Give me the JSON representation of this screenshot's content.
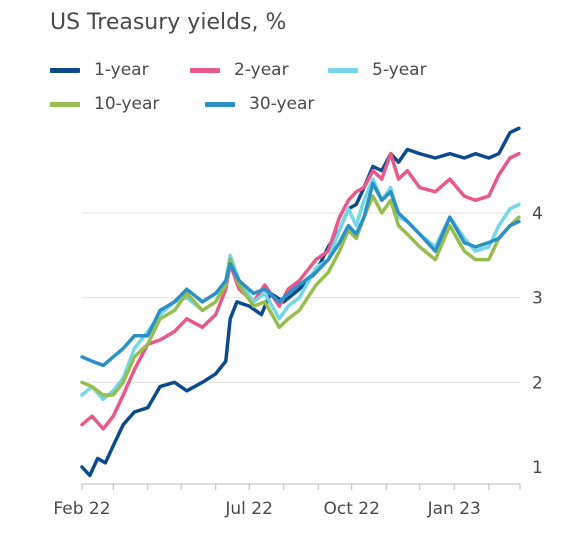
{
  "chart_data": {
    "type": "line",
    "title": "US Treasury yields, %",
    "xlabel": "",
    "ylabel": "",
    "x_ticks": [
      "Feb 22",
      "Jul 22",
      "Oct 22",
      "Jan 23"
    ],
    "y_ticks": [
      "1",
      "2",
      "3",
      "4"
    ],
    "ylim": [
      0.85,
      5.0
    ],
    "xlim": [
      "2022-02-01",
      "2023-03-01"
    ],
    "y_axis_side": "right",
    "grid": "horizontal",
    "legend_position": "top",
    "series": [
      {
        "name": "1-year",
        "color": "#0d4a8c",
        "points": [
          [
            "2022-02-01",
            1.0
          ],
          [
            "2022-02-08",
            0.9
          ],
          [
            "2022-02-15",
            1.1
          ],
          [
            "2022-02-22",
            1.05
          ],
          [
            "2022-03-01",
            1.25
          ],
          [
            "2022-03-10",
            1.5
          ],
          [
            "2022-03-20",
            1.65
          ],
          [
            "2022-04-01",
            1.7
          ],
          [
            "2022-04-12",
            1.95
          ],
          [
            "2022-04-25",
            2.0
          ],
          [
            "2022-05-06",
            1.9
          ],
          [
            "2022-05-20",
            2.0
          ],
          [
            "2022-06-01",
            2.1
          ],
          [
            "2022-06-10",
            2.25
          ],
          [
            "2022-06-14",
            2.75
          ],
          [
            "2022-06-20",
            2.95
          ],
          [
            "2022-07-01",
            2.9
          ],
          [
            "2022-07-12",
            2.8
          ],
          [
            "2022-07-20",
            3.05
          ],
          [
            "2022-08-01",
            2.95
          ],
          [
            "2022-08-15",
            3.1
          ],
          [
            "2022-08-30",
            3.3
          ],
          [
            "2022-09-10",
            3.6
          ],
          [
            "2022-09-20",
            3.8
          ],
          [
            "2022-09-28",
            4.05
          ],
          [
            "2022-10-05",
            4.1
          ],
          [
            "2022-10-12",
            4.3
          ],
          [
            "2022-10-20",
            4.55
          ],
          [
            "2022-10-28",
            4.5
          ],
          [
            "2022-11-05",
            4.7
          ],
          [
            "2022-11-12",
            4.6
          ],
          [
            "2022-11-20",
            4.75
          ],
          [
            "2022-12-01",
            4.7
          ],
          [
            "2022-12-15",
            4.65
          ],
          [
            "2022-12-28",
            4.7
          ],
          [
            "2023-01-10",
            4.65
          ],
          [
            "2023-01-20",
            4.7
          ],
          [
            "2023-02-01",
            4.65
          ],
          [
            "2023-02-10",
            4.7
          ],
          [
            "2023-02-20",
            4.95
          ],
          [
            "2023-02-28",
            5.0
          ]
        ]
      },
      {
        "name": "2-year",
        "color": "#e8588a",
        "points": [
          [
            "2022-02-01",
            1.5
          ],
          [
            "2022-02-10",
            1.6
          ],
          [
            "2022-02-20",
            1.45
          ],
          [
            "2022-03-01",
            1.6
          ],
          [
            "2022-03-10",
            1.85
          ],
          [
            "2022-03-20",
            2.15
          ],
          [
            "2022-04-01",
            2.45
          ],
          [
            "2022-04-12",
            2.5
          ],
          [
            "2022-04-25",
            2.6
          ],
          [
            "2022-05-06",
            2.75
          ],
          [
            "2022-05-20",
            2.65
          ],
          [
            "2022-06-01",
            2.8
          ],
          [
            "2022-06-10",
            3.1
          ],
          [
            "2022-06-14",
            3.4
          ],
          [
            "2022-06-22",
            3.1
          ],
          [
            "2022-07-05",
            2.95
          ],
          [
            "2022-07-15",
            3.15
          ],
          [
            "2022-07-28",
            2.9
          ],
          [
            "2022-08-05",
            3.1
          ],
          [
            "2022-08-15",
            3.2
          ],
          [
            "2022-08-30",
            3.45
          ],
          [
            "2022-09-10",
            3.55
          ],
          [
            "2022-09-20",
            3.95
          ],
          [
            "2022-09-28",
            4.15
          ],
          [
            "2022-10-05",
            4.25
          ],
          [
            "2022-10-12",
            4.3
          ],
          [
            "2022-10-20",
            4.5
          ],
          [
            "2022-10-28",
            4.4
          ],
          [
            "2022-11-05",
            4.7
          ],
          [
            "2022-11-12",
            4.4
          ],
          [
            "2022-11-20",
            4.5
          ],
          [
            "2022-12-01",
            4.3
          ],
          [
            "2022-12-15",
            4.25
          ],
          [
            "2022-12-28",
            4.4
          ],
          [
            "2023-01-10",
            4.2
          ],
          [
            "2023-01-20",
            4.15
          ],
          [
            "2023-02-01",
            4.2
          ],
          [
            "2023-02-10",
            4.45
          ],
          [
            "2023-02-20",
            4.65
          ],
          [
            "2023-02-28",
            4.7
          ]
        ]
      },
      {
        "name": "5-year",
        "color": "#73d7e8",
        "points": [
          [
            "2022-02-01",
            1.85
          ],
          [
            "2022-02-10",
            1.95
          ],
          [
            "2022-02-20",
            1.8
          ],
          [
            "2022-03-01",
            1.9
          ],
          [
            "2022-03-10",
            2.05
          ],
          [
            "2022-03-20",
            2.4
          ],
          [
            "2022-04-01",
            2.6
          ],
          [
            "2022-04-12",
            2.8
          ],
          [
            "2022-04-25",
            2.95
          ],
          [
            "2022-05-06",
            3.0
          ],
          [
            "2022-05-20",
            2.85
          ],
          [
            "2022-06-01",
            2.95
          ],
          [
            "2022-06-10",
            3.2
          ],
          [
            "2022-06-14",
            3.5
          ],
          [
            "2022-06-22",
            3.2
          ],
          [
            "2022-07-05",
            2.95
          ],
          [
            "2022-07-15",
            3.05
          ],
          [
            "2022-07-28",
            2.75
          ],
          [
            "2022-08-05",
            2.9
          ],
          [
            "2022-08-15",
            3.0
          ],
          [
            "2022-08-30",
            3.35
          ],
          [
            "2022-09-10",
            3.45
          ],
          [
            "2022-09-20",
            3.8
          ],
          [
            "2022-09-28",
            4.05
          ],
          [
            "2022-10-05",
            3.85
          ],
          [
            "2022-10-12",
            4.15
          ],
          [
            "2022-10-20",
            4.4
          ],
          [
            "2022-10-28",
            4.15
          ],
          [
            "2022-11-05",
            4.3
          ],
          [
            "2022-11-12",
            3.95
          ],
          [
            "2022-11-20",
            3.9
          ],
          [
            "2022-12-01",
            3.75
          ],
          [
            "2022-12-15",
            3.6
          ],
          [
            "2022-12-28",
            3.95
          ],
          [
            "2023-01-10",
            3.7
          ],
          [
            "2023-01-20",
            3.55
          ],
          [
            "2023-02-01",
            3.6
          ],
          [
            "2023-02-10",
            3.85
          ],
          [
            "2023-02-20",
            4.05
          ],
          [
            "2023-02-28",
            4.1
          ]
        ]
      },
      {
        "name": "10-year",
        "color": "#96bd4e",
        "points": [
          [
            "2022-02-01",
            2.0
          ],
          [
            "2022-02-10",
            1.95
          ],
          [
            "2022-02-20",
            1.85
          ],
          [
            "2022-03-01",
            1.85
          ],
          [
            "2022-03-10",
            2.0
          ],
          [
            "2022-03-20",
            2.3
          ],
          [
            "2022-04-01",
            2.45
          ],
          [
            "2022-04-12",
            2.75
          ],
          [
            "2022-04-25",
            2.85
          ],
          [
            "2022-05-06",
            3.05
          ],
          [
            "2022-05-20",
            2.85
          ],
          [
            "2022-06-01",
            2.95
          ],
          [
            "2022-06-10",
            3.15
          ],
          [
            "2022-06-14",
            3.45
          ],
          [
            "2022-06-22",
            3.15
          ],
          [
            "2022-07-05",
            2.9
          ],
          [
            "2022-07-15",
            2.95
          ],
          [
            "2022-07-28",
            2.65
          ],
          [
            "2022-08-05",
            2.75
          ],
          [
            "2022-08-15",
            2.85
          ],
          [
            "2022-08-30",
            3.15
          ],
          [
            "2022-09-10",
            3.3
          ],
          [
            "2022-09-20",
            3.55
          ],
          [
            "2022-09-28",
            3.8
          ],
          [
            "2022-10-05",
            3.7
          ],
          [
            "2022-10-12",
            3.95
          ],
          [
            "2022-10-20",
            4.2
          ],
          [
            "2022-10-28",
            4.0
          ],
          [
            "2022-11-05",
            4.15
          ],
          [
            "2022-11-12",
            3.85
          ],
          [
            "2022-11-20",
            3.75
          ],
          [
            "2022-12-01",
            3.6
          ],
          [
            "2022-12-15",
            3.45
          ],
          [
            "2022-12-28",
            3.85
          ],
          [
            "2023-01-10",
            3.55
          ],
          [
            "2023-01-20",
            3.45
          ],
          [
            "2023-02-01",
            3.45
          ],
          [
            "2023-02-10",
            3.7
          ],
          [
            "2023-02-20",
            3.85
          ],
          [
            "2023-02-28",
            3.95
          ]
        ]
      },
      {
        "name": "30-year",
        "color": "#2a90c6",
        "points": [
          [
            "2022-02-01",
            2.3
          ],
          [
            "2022-02-10",
            2.25
          ],
          [
            "2022-02-20",
            2.2
          ],
          [
            "2022-03-01",
            2.3
          ],
          [
            "2022-03-10",
            2.4
          ],
          [
            "2022-03-20",
            2.55
          ],
          [
            "2022-04-01",
            2.55
          ],
          [
            "2022-04-12",
            2.85
          ],
          [
            "2022-04-25",
            2.95
          ],
          [
            "2022-05-06",
            3.1
          ],
          [
            "2022-05-20",
            2.95
          ],
          [
            "2022-06-01",
            3.05
          ],
          [
            "2022-06-10",
            3.2
          ],
          [
            "2022-06-14",
            3.4
          ],
          [
            "2022-06-22",
            3.2
          ],
          [
            "2022-07-05",
            3.05
          ],
          [
            "2022-07-15",
            3.1
          ],
          [
            "2022-07-28",
            2.95
          ],
          [
            "2022-08-05",
            3.05
          ],
          [
            "2022-08-15",
            3.15
          ],
          [
            "2022-08-30",
            3.3
          ],
          [
            "2022-09-10",
            3.45
          ],
          [
            "2022-09-20",
            3.65
          ],
          [
            "2022-09-28",
            3.85
          ],
          [
            "2022-10-05",
            3.75
          ],
          [
            "2022-10-12",
            3.95
          ],
          [
            "2022-10-20",
            4.35
          ],
          [
            "2022-10-28",
            4.15
          ],
          [
            "2022-11-05",
            4.25
          ],
          [
            "2022-11-12",
            4.0
          ],
          [
            "2022-11-20",
            3.9
          ],
          [
            "2022-12-01",
            3.75
          ],
          [
            "2022-12-15",
            3.55
          ],
          [
            "2022-12-28",
            3.95
          ],
          [
            "2023-01-10",
            3.65
          ],
          [
            "2023-01-20",
            3.6
          ],
          [
            "2023-02-01",
            3.65
          ],
          [
            "2023-02-10",
            3.7
          ],
          [
            "2023-02-20",
            3.85
          ],
          [
            "2023-02-28",
            3.9
          ]
        ]
      }
    ]
  }
}
